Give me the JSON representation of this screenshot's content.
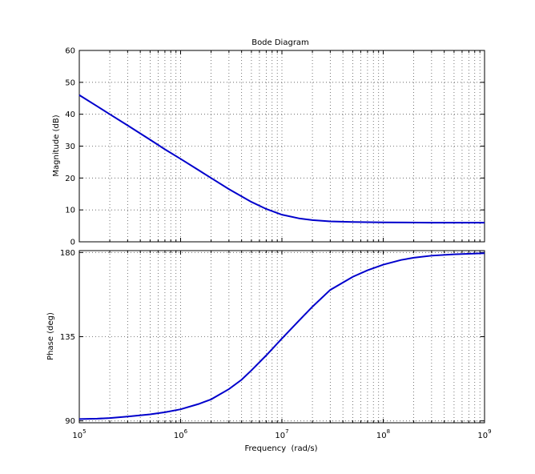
{
  "chart_data": [
    {
      "type": "line",
      "title": "Bode Diagram",
      "xlabel": "",
      "ylabel": "Magnitude (dB)",
      "x_scale": "log",
      "xlim": [
        100000,
        1000000000
      ],
      "ylim": [
        0,
        60
      ],
      "y_ticks": [
        "0",
        "10",
        "20",
        "30",
        "40",
        "50",
        "60"
      ],
      "grid": true,
      "line_color": "#0000cc",
      "series": [
        {
          "x": [
            100000,
            150000,
            200000,
            300000,
            500000,
            700000,
            1000000,
            1500000,
            2000000,
            3000000,
            5000000,
            7000000,
            10000000,
            15000000,
            20000000,
            30000000,
            50000000,
            100000000,
            300000000,
            1000000000
          ],
          "values": [
            46,
            42.5,
            40,
            36.5,
            32,
            29,
            26,
            22.5,
            20,
            16.5,
            12.5,
            10.3,
            8.5,
            7.3,
            6.8,
            6.4,
            6.2,
            6.1,
            6.0,
            6.0
          ]
        }
      ]
    },
    {
      "type": "line",
      "xlabel": "Frequency  (rad/s)",
      "ylabel": "Phase (deg)",
      "x_scale": "log",
      "xlim": [
        100000,
        1000000000
      ],
      "x_ticks": [
        {
          "base": "10",
          "exp": "5"
        },
        {
          "base": "10",
          "exp": "6"
        },
        {
          "base": "10",
          "exp": "7"
        },
        {
          "base": "10",
          "exp": "8"
        },
        {
          "base": "10",
          "exp": "9"
        }
      ],
      "ylim": [
        89,
        181
      ],
      "y_ticks": [
        "90",
        "135",
        "180"
      ],
      "grid": true,
      "line_color": "#0000cc",
      "series": [
        {
          "x": [
            100000,
            150000,
            200000,
            300000,
            500000,
            700000,
            1000000,
            1500000,
            2000000,
            3000000,
            4000000,
            5000000,
            7000000,
            10000000,
            15000000,
            20000000,
            30000000,
            50000000,
            70000000,
            100000000,
            150000000,
            200000000,
            300000000,
            500000000,
            1000000000
          ],
          "values": [
            91,
            91.2,
            91.5,
            92.3,
            93.5,
            94.6,
            96.2,
            99,
            101.5,
            107,
            112,
            117,
            125,
            134,
            144,
            151,
            160,
            167,
            170.5,
            173.5,
            176,
            177.2,
            178.3,
            179,
            179.6
          ]
        }
      ]
    }
  ]
}
